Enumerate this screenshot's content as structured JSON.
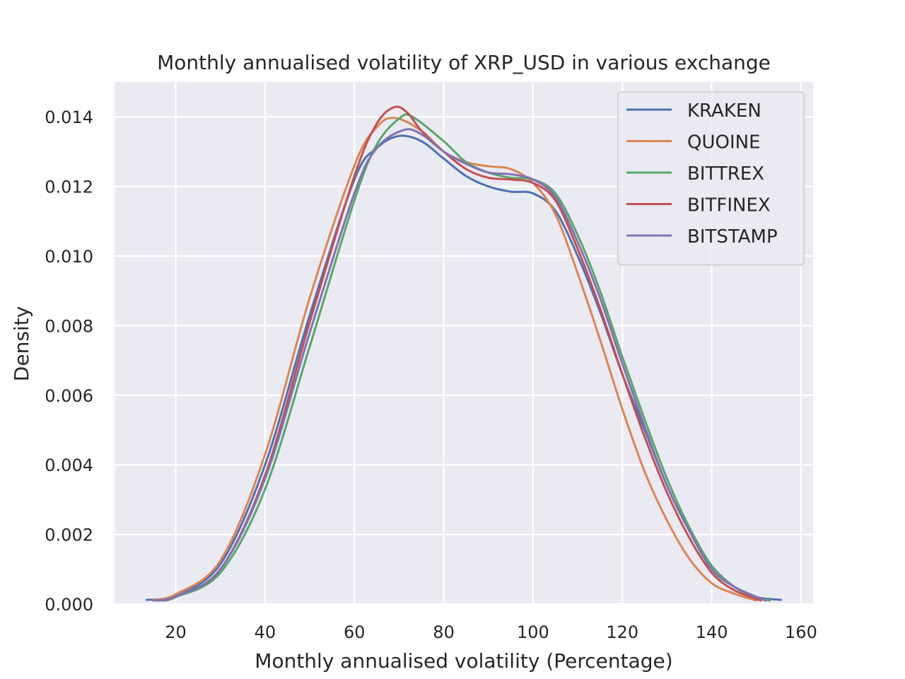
{
  "chart_data": {
    "type": "line",
    "title": "Monthly annualised volatility of XRP_USD in various exchange",
    "xlabel": "Monthly annualised volatility (Percentage)",
    "ylabel": "Density",
    "xlim": [
      6.3,
      162.7
    ],
    "ylim": [
      0,
      0.015
    ],
    "xticks": [
      20,
      40,
      60,
      80,
      100,
      120,
      140,
      160
    ],
    "yticks": [
      0.0,
      0.002,
      0.004,
      0.006,
      0.008,
      0.01,
      0.012,
      0.014
    ],
    "xtick_labels": [
      "20",
      "40",
      "60",
      "80",
      "100",
      "120",
      "140",
      "160"
    ],
    "ytick_labels": [
      "0.000",
      "0.002",
      "0.004",
      "0.006",
      "0.008",
      "0.010",
      "0.012",
      "0.014"
    ],
    "grid": true,
    "legend_position": "top-right",
    "series": [
      {
        "name": "KRAKEN",
        "color": "#4C72B0",
        "points": [
          [
            13.5,
            0.00012
          ],
          [
            20,
            0.00025
          ],
          [
            30,
            0.00115
          ],
          [
            40,
            0.004
          ],
          [
            50,
            0.0083
          ],
          [
            60,
            0.0122
          ],
          [
            65,
            0.0131
          ],
          [
            70,
            0.01345
          ],
          [
            75,
            0.0133
          ],
          [
            80,
            0.0128
          ],
          [
            85,
            0.0123
          ],
          [
            90,
            0.012
          ],
          [
            95,
            0.01185
          ],
          [
            100,
            0.0118
          ],
          [
            105,
            0.0113
          ],
          [
            110,
            0.01
          ],
          [
            115,
            0.0084
          ],
          [
            120,
            0.0066
          ],
          [
            125,
            0.005
          ],
          [
            130,
            0.0034
          ],
          [
            135,
            0.0021
          ],
          [
            140,
            0.0011
          ],
          [
            145,
            0.0005
          ],
          [
            150,
            0.0002
          ],
          [
            155.5,
            0.00012
          ]
        ]
      },
      {
        "name": "QUOINE",
        "color": "#DD8452",
        "points": [
          [
            15,
            0.00012
          ],
          [
            20,
            0.00028
          ],
          [
            30,
            0.00125
          ],
          [
            40,
            0.0043
          ],
          [
            50,
            0.0088
          ],
          [
            60,
            0.0126
          ],
          [
            65,
            0.0137
          ],
          [
            69,
            0.01397
          ],
          [
            75,
            0.0136
          ],
          [
            80,
            0.013
          ],
          [
            85,
            0.0127
          ],
          [
            90,
            0.01258
          ],
          [
            95,
            0.0125
          ],
          [
            100,
            0.0121
          ],
          [
            105,
            0.0112
          ],
          [
            110,
            0.0095
          ],
          [
            115,
            0.0076
          ],
          [
            120,
            0.0056
          ],
          [
            125,
            0.0038
          ],
          [
            130,
            0.0024
          ],
          [
            135,
            0.0013
          ],
          [
            140,
            0.0006
          ],
          [
            145,
            0.0003
          ],
          [
            150,
            0.0001
          ]
        ]
      },
      {
        "name": "BITTREX",
        "color": "#55A868",
        "points": [
          [
            17,
            0.0001
          ],
          [
            20,
            0.0002
          ],
          [
            30,
            0.0009
          ],
          [
            40,
            0.0033
          ],
          [
            50,
            0.0074
          ],
          [
            60,
            0.0116
          ],
          [
            65,
            0.0132
          ],
          [
            70,
            0.01395
          ],
          [
            73,
            0.014
          ],
          [
            80,
            0.0133
          ],
          [
            85,
            0.0127
          ],
          [
            90,
            0.0124
          ],
          [
            95,
            0.01225
          ],
          [
            100,
            0.0122
          ],
          [
            105,
            0.0118
          ],
          [
            110,
            0.0106
          ],
          [
            115,
            0.009
          ],
          [
            120,
            0.0071
          ],
          [
            125,
            0.0053
          ],
          [
            130,
            0.0036
          ],
          [
            135,
            0.0022
          ],
          [
            140,
            0.0011
          ],
          [
            145,
            0.0005
          ],
          [
            150,
            0.0002
          ],
          [
            153,
            0.0001
          ]
        ]
      },
      {
        "name": "BITFINEX",
        "color": "#C44E52",
        "points": [
          [
            16,
            0.0001
          ],
          [
            20,
            0.00022
          ],
          [
            30,
            0.001
          ],
          [
            40,
            0.0037
          ],
          [
            50,
            0.0081
          ],
          [
            60,
            0.0123
          ],
          [
            65,
            0.0138
          ],
          [
            69,
            0.01428
          ],
          [
            72,
            0.0141
          ],
          [
            75,
            0.0136
          ],
          [
            80,
            0.013
          ],
          [
            85,
            0.0125
          ],
          [
            90,
            0.01225
          ],
          [
            95,
            0.0122
          ],
          [
            100,
            0.0121
          ],
          [
            105,
            0.0116
          ],
          [
            110,
            0.0102
          ],
          [
            115,
            0.0085
          ],
          [
            120,
            0.0066
          ],
          [
            125,
            0.0048
          ],
          [
            130,
            0.0032
          ],
          [
            135,
            0.0019
          ],
          [
            140,
            0.0009
          ],
          [
            145,
            0.0004
          ],
          [
            151,
            0.0001
          ]
        ]
      },
      {
        "name": "BITSTAMP",
        "color": "#8172B3",
        "points": [
          [
            15,
            0.0001
          ],
          [
            20,
            0.00022
          ],
          [
            30,
            0.001
          ],
          [
            40,
            0.0036
          ],
          [
            50,
            0.0078
          ],
          [
            60,
            0.0118
          ],
          [
            65,
            0.0131
          ],
          [
            71,
            0.01362
          ],
          [
            75,
            0.0135
          ],
          [
            80,
            0.013
          ],
          [
            85,
            0.01265
          ],
          [
            90,
            0.0124
          ],
          [
            95,
            0.01235
          ],
          [
            100,
            0.0122
          ],
          [
            105,
            0.0117
          ],
          [
            110,
            0.0104
          ],
          [
            115,
            0.0088
          ],
          [
            120,
            0.0069
          ],
          [
            125,
            0.0051
          ],
          [
            130,
            0.0034
          ],
          [
            135,
            0.0021
          ],
          [
            140,
            0.001
          ],
          [
            145,
            0.0005
          ],
          [
            152,
            0.0001
          ]
        ]
      }
    ]
  }
}
